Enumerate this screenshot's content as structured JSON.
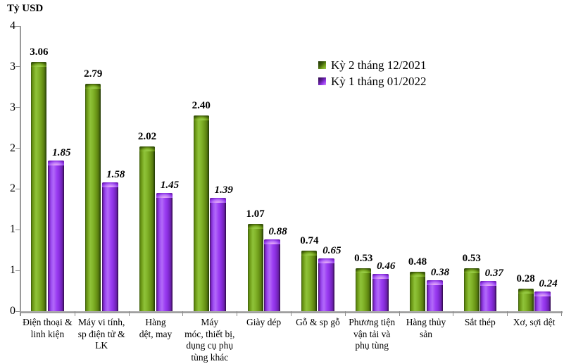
{
  "title": "Tỷ USD",
  "legend": {
    "items": [
      {
        "label": "Kỳ 2 tháng 12/2021",
        "color": "#77a51f"
      },
      {
        "label": "Kỳ 1 tháng 01/2022",
        "color": "#9b3df2"
      }
    ]
  },
  "chart_data": {
    "type": "bar",
    "title": "Tỷ USD",
    "ylabel": "Tỷ USD",
    "xlabel": "",
    "grid": false,
    "legend_position": "top-center-inside",
    "categories": [
      "Điện thoại & linh kiện",
      "Máy vi tính, sp điện tử & LK",
      "Hàng dệt, may",
      "Máy móc, thiết bị, dụng cụ phụ tùng khác",
      "Giày dép",
      "Gỗ & sp gỗ",
      "Phương tiện vận tải và phụ tùng",
      "Hàng thủy sản",
      "Sắt thép",
      "Xơ, sợi dệt"
    ],
    "category_display_lines": [
      "Điện thoại &\nlinh kiện",
      "Máy vi tính,\nsp điện tử &\nLK",
      "Hàng\ndệt, may",
      "Máy\nmóc, thiết bị,\ndụng cụ phụ\ntùng khác",
      "Giày dép",
      "Gỗ & sp gỗ",
      "Phương tiện\nvận tải và\nphụ tùng",
      "Hàng thủy\nsản",
      "Sắt thép",
      "Xơ, sợi dệt"
    ],
    "series": [
      {
        "name": "Kỳ 2 tháng 12/2021",
        "color": "#77a51f",
        "values": [
          3.06,
          2.79,
          2.02,
          2.4,
          1.07,
          0.74,
          0.53,
          0.48,
          0.53,
          0.28
        ],
        "value_labels": [
          "3.06",
          "2.79",
          "2.02",
          "2.40",
          "1.07",
          "0.74",
          "0.53",
          "0.48",
          "0.53",
          "0.28"
        ]
      },
      {
        "name": "Kỳ 1 tháng 01/2022",
        "color": "#9b3df2",
        "values": [
          1.85,
          1.58,
          1.45,
          1.39,
          0.88,
          0.65,
          0.46,
          0.38,
          0.37,
          0.24
        ],
        "value_labels": [
          "1.85",
          "1.58",
          "1.45",
          "1.39",
          "0.88",
          "0.65",
          "0.46",
          "0.38",
          "0.37",
          "0.24"
        ]
      }
    ],
    "y_axis": {
      "min": 0,
      "max": 3.5,
      "step": 0.5,
      "tick_labels_shown_top_to_bottom": [
        "4",
        "3",
        "3",
        "2",
        "2",
        "1",
        "1",
        "0"
      ]
    }
  }
}
